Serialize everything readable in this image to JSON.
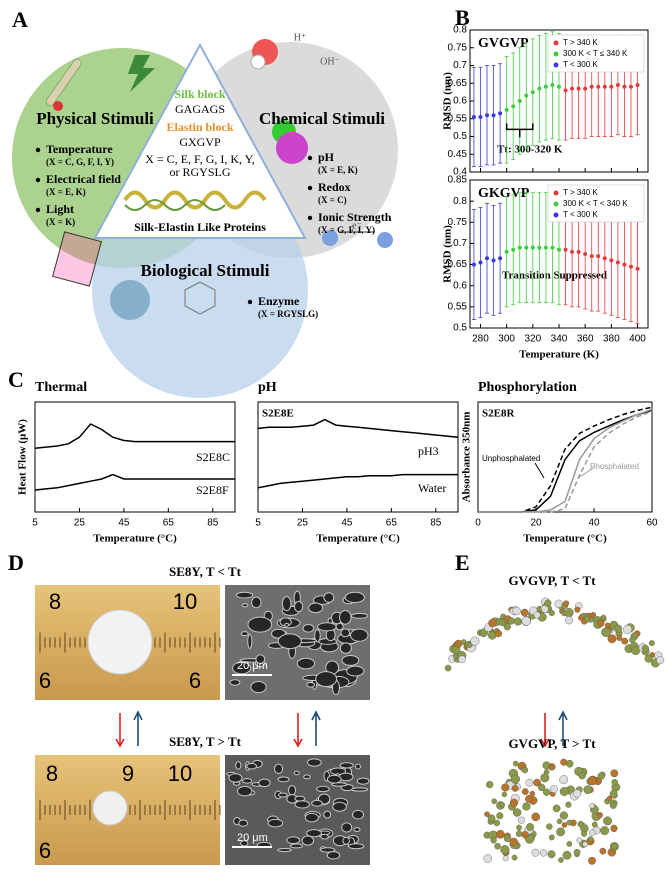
{
  "panel_labels": [
    "A",
    "B",
    "C",
    "D",
    "E"
  ],
  "panel_a": {
    "physical": {
      "title": "Physical Stimuli",
      "items": [
        {
          "name": "Temperature",
          "x": "(X = C, G, F, I, Y)"
        },
        {
          "name": "Electrical field",
          "x": "(X = E, K)"
        },
        {
          "name": "Light",
          "x": "(X = K)"
        }
      ]
    },
    "chemical": {
      "title": "Chemical Stimuli",
      "items": [
        {
          "name": "pH",
          "x": "(X = E, K)"
        },
        {
          "name": "Redox",
          "x": "(X = C)"
        },
        {
          "name": "Ionic Strength",
          "x": "(X = G, F, I, Y)"
        }
      ],
      "ions": [
        "H⁺",
        "OH⁻",
        "e⁻"
      ]
    },
    "biological": {
      "title": "Biological Stimuli",
      "items": [
        {
          "name": "Enzyme",
          "x": "(X = RGYSLG)"
        }
      ]
    },
    "center": {
      "silk_label": "Silk block",
      "silk_seq": "GAGAGS",
      "elastin_label": "Elastin block",
      "elastin_seq": "GXGVP",
      "x_line1": "X = C, E, F, G, I, K, Y,",
      "x_line2": "or RGYSLG",
      "caption": "Silk-Elastin Like Proteins"
    }
  },
  "chart_data": [
    {
      "type": "errorbar",
      "title": "GVGVP",
      "y_label": "RMSD (nm)",
      "annotation": "Tt: 300-320 K",
      "xlim": [
        272,
        408
      ],
      "xticks": [
        280,
        300,
        320,
        340,
        360,
        380,
        400
      ],
      "show_xtick_labels": false,
      "ylim": [
        0.4,
        0.8
      ],
      "yticks": [
        0.4,
        0.45,
        0.5,
        0.55,
        0.6,
        0.65,
        0.7,
        0.75,
        0.8
      ],
      "legend": "upper right",
      "series": [
        {
          "name": "T > 340 K",
          "color": "#e8393a",
          "x": [
            345,
            350,
            355,
            360,
            365,
            370,
            375,
            380,
            385,
            390,
            395,
            400
          ],
          "values": [
            0.63,
            0.635,
            0.635,
            0.635,
            0.64,
            0.64,
            0.64,
            0.64,
            0.645,
            0.64,
            0.64,
            0.645
          ],
          "errors": [
            0.14,
            0.14,
            0.14,
            0.14,
            0.14,
            0.14,
            0.14,
            0.14,
            0.14,
            0.14,
            0.14,
            0.14
          ]
        },
        {
          "name": "300 K < T ≤ 340 K",
          "color": "#3ccf3c",
          "x": [
            300,
            305,
            310,
            315,
            320,
            325,
            330,
            335,
            340
          ],
          "values": [
            0.575,
            0.585,
            0.6,
            0.615,
            0.625,
            0.635,
            0.64,
            0.645,
            0.64
          ],
          "errors": [
            0.15,
            0.15,
            0.15,
            0.15,
            0.15,
            0.15,
            0.15,
            0.15,
            0.15
          ]
        },
        {
          "name": "T < 300 K",
          "color": "#3a3ae0",
          "x": [
            275,
            280,
            285,
            290,
            295
          ],
          "values": [
            0.555,
            0.555,
            0.56,
            0.56,
            0.565
          ],
          "errors": [
            0.14,
            0.14,
            0.14,
            0.14,
            0.14
          ]
        }
      ]
    },
    {
      "type": "errorbar",
      "title": "GKGVP",
      "y_label": "RMSD (nm)",
      "x_label": "Temperature (K)",
      "annotation": "Transition Suppressed",
      "xlim": [
        272,
        408
      ],
      "xticks": [
        280,
        300,
        320,
        340,
        360,
        380,
        400
      ],
      "ylim": [
        0.5,
        0.85
      ],
      "yticks": [
        0.5,
        0.55,
        0.6,
        0.65,
        0.7,
        0.75,
        0.8,
        0.85
      ],
      "legend": "upper right",
      "series": [
        {
          "name": "T > 340 K",
          "color": "#e8393a",
          "x": [
            345,
            350,
            355,
            360,
            365,
            370,
            375,
            380,
            385,
            390,
            395,
            400
          ],
          "values": [
            0.685,
            0.68,
            0.68,
            0.675,
            0.67,
            0.67,
            0.665,
            0.66,
            0.655,
            0.65,
            0.645,
            0.64
          ],
          "errors": [
            0.13,
            0.13,
            0.13,
            0.13,
            0.13,
            0.13,
            0.13,
            0.13,
            0.13,
            0.13,
            0.13,
            0.13
          ]
        },
        {
          "name": "300 K < T < 340 K",
          "color": "#3ccf3c",
          "x": [
            300,
            305,
            310,
            315,
            320,
            325,
            330,
            335,
            340
          ],
          "values": [
            0.68,
            0.685,
            0.69,
            0.69,
            0.69,
            0.69,
            0.69,
            0.69,
            0.685
          ],
          "errors": [
            0.13,
            0.13,
            0.13,
            0.13,
            0.13,
            0.13,
            0.13,
            0.13,
            0.13
          ]
        },
        {
          "name": "T < 300 K",
          "color": "#3a3ae0",
          "x": [
            275,
            280,
            285,
            290,
            295
          ],
          "values": [
            0.65,
            0.655,
            0.665,
            0.66,
            0.665
          ],
          "errors": [
            0.13,
            0.13,
            0.13,
            0.13,
            0.13
          ]
        }
      ]
    },
    {
      "type": "line",
      "title": "Thermal",
      "x_label": "Temperature (°C)",
      "y_label": "Heat Flow (μW)",
      "xlim": [
        5,
        95
      ],
      "xticks": [
        5,
        25,
        45,
        65,
        85
      ],
      "ylim": [
        0,
        10
      ],
      "x": [
        5,
        10,
        15,
        20,
        25,
        30,
        35,
        40,
        45,
        50,
        55,
        60,
        65,
        70,
        75,
        80,
        85,
        90,
        95
      ],
      "series": [
        {
          "name": "S2E8C",
          "color": "#000000",
          "values": [
            5.8,
            5.9,
            6.0,
            6.2,
            6.8,
            8.0,
            7.5,
            6.8,
            6.5,
            6.4,
            6.4,
            6.4,
            6.4,
            6.4,
            6.4,
            6.4,
            6.4,
            6.4,
            6.4
          ]
        },
        {
          "name": "S2E8F",
          "color": "#000000",
          "values": [
            2.0,
            2.1,
            2.2,
            2.4,
            2.6,
            2.8,
            3.0,
            3.4,
            3.0,
            3.0,
            3.0,
            3.0,
            3.0,
            3.0,
            3.0,
            3.0,
            3.0,
            3.0,
            3.0
          ]
        }
      ]
    },
    {
      "type": "line",
      "title": "pH",
      "x_label": "Temperature (°C)",
      "annotation": "S2E8E",
      "xlim": [
        5,
        95
      ],
      "xticks": [
        5,
        25,
        45,
        65,
        85
      ],
      "ylim": [
        0,
        10
      ],
      "x": [
        5,
        10,
        15,
        20,
        25,
        30,
        35,
        40,
        45,
        50,
        55,
        60,
        65,
        70,
        75,
        80,
        85,
        90,
        95
      ],
      "series": [
        {
          "name": "pH3",
          "color": "#000000",
          "values": [
            7.6,
            7.7,
            7.7,
            7.7,
            7.8,
            7.9,
            8.4,
            7.9,
            7.8,
            7.7,
            7.6,
            7.5,
            7.4,
            7.3,
            7.2,
            7.1,
            7.0,
            6.9,
            6.8
          ]
        },
        {
          "name": "Water",
          "color": "#000000",
          "values": [
            2.2,
            2.4,
            2.6,
            2.7,
            2.8,
            2.9,
            3.0,
            3.1,
            3.2,
            3.2,
            3.3,
            3.3,
            3.3,
            3.4,
            3.4,
            3.4,
            3.4,
            3.4,
            3.4
          ]
        }
      ]
    },
    {
      "type": "line",
      "title": "Phosphorylation",
      "x_label": "Temperature (°C)",
      "y_label": "Absorbance 350nm",
      "annotation": "S2E8R",
      "xlim": [
        0,
        60
      ],
      "xticks": [
        0,
        20,
        40,
        60
      ],
      "ylim": [
        0,
        1.05
      ],
      "x": [
        0,
        5,
        10,
        15,
        20,
        25,
        30,
        35,
        40,
        45,
        50,
        55,
        60
      ],
      "series": [
        {
          "name": "Unphosphalated",
          "color": "#000000",
          "dash": true,
          "values": [
            0,
            0,
            0,
            0,
            0.05,
            0.25,
            0.6,
            0.75,
            0.82,
            0.88,
            0.93,
            0.97,
            1.0
          ]
        },
        {
          "color": "#000000",
          "values": [
            0,
            0,
            0,
            0,
            0.02,
            0.15,
            0.5,
            0.68,
            0.76,
            0.82,
            0.88,
            0.93,
            0.97
          ]
        },
        {
          "name": "Phosphalated",
          "color": "#999999",
          "values": [
            0,
            0,
            0,
            0,
            0,
            0.02,
            0.1,
            0.5,
            0.7,
            0.8,
            0.87,
            0.93,
            0.98
          ]
        },
        {
          "color": "#999999",
          "dash": true,
          "values": [
            0,
            0,
            0,
            0,
            0,
            0,
            0.03,
            0.35,
            0.62,
            0.75,
            0.84,
            0.91,
            0.96
          ]
        }
      ]
    }
  ],
  "panel_d": {
    "top_title": "SE8Y, T < Tt",
    "bottom_title": "SE8Y, T > Tt",
    "scale_bars": [
      "20 μm",
      "20 μm"
    ],
    "top_ruler": [
      "8",
      "10",
      "6",
      "6"
    ],
    "bottom_ruler": [
      "8",
      "9",
      "10",
      "6"
    ]
  },
  "panel_e": {
    "top_title": "GVGVP, T < Tt",
    "bottom_title": "GVGVP, T > Tt"
  }
}
